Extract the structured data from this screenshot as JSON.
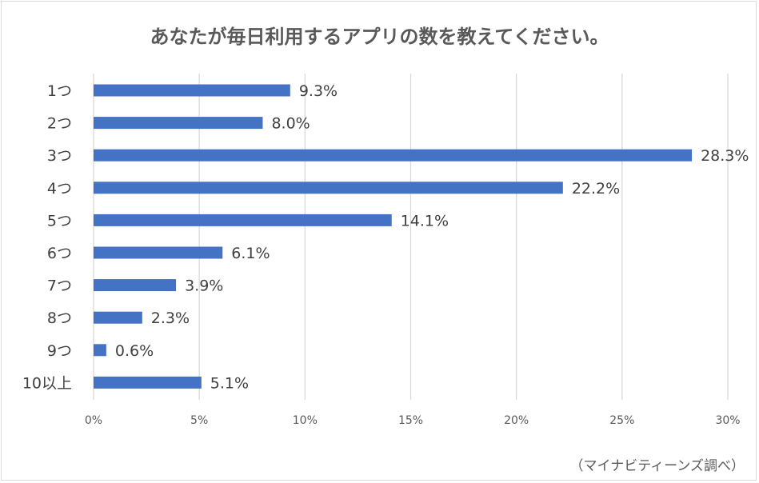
{
  "chart_data": {
    "type": "bar",
    "orientation": "horizontal",
    "title": "あなたが毎日利用するアプリの数を教えてください。",
    "source_note": "（マイナビティーンズ調べ）",
    "categories": [
      "1つ",
      "2つ",
      "3つ",
      "4つ",
      "5つ",
      "6つ",
      "7つ",
      "8つ",
      "9つ",
      "10以上"
    ],
    "values": [
      9.3,
      8.0,
      28.3,
      22.2,
      14.1,
      6.1,
      3.9,
      2.3,
      0.6,
      5.1
    ],
    "value_labels": [
      "9.3%",
      "8.0%",
      "28.3%",
      "22.2%",
      "14.1%",
      "6.1%",
      "3.9%",
      "2.3%",
      "0.6%",
      "5.1%"
    ],
    "xlim": [
      0,
      30
    ],
    "x_ticks": [
      0,
      5,
      10,
      15,
      20,
      25,
      30
    ],
    "x_tick_labels": [
      "0%",
      "5%",
      "10%",
      "15%",
      "20%",
      "25%",
      "30%"
    ],
    "grid": "vertical",
    "legend": "none",
    "bar_color": "#4472c4",
    "grid_color": "#d9d9d9"
  }
}
